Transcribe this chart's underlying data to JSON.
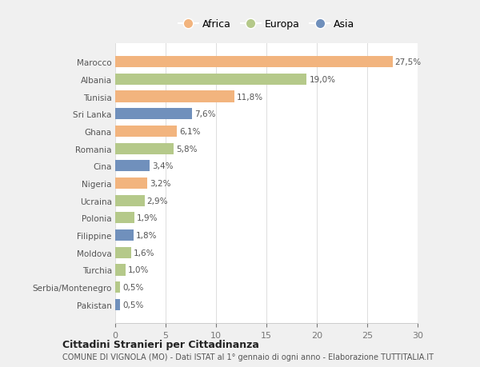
{
  "countries": [
    "Marocco",
    "Albania",
    "Tunisia",
    "Sri Lanka",
    "Ghana",
    "Romania",
    "Cina",
    "Nigeria",
    "Ucraina",
    "Polonia",
    "Filippine",
    "Moldova",
    "Turchia",
    "Serbia/Montenegro",
    "Pakistan"
  ],
  "values": [
    27.5,
    19.0,
    11.8,
    7.6,
    6.1,
    5.8,
    3.4,
    3.2,
    2.9,
    1.9,
    1.8,
    1.6,
    1.0,
    0.5,
    0.5
  ],
  "labels": [
    "27,5%",
    "19,0%",
    "11,8%",
    "7,6%",
    "6,1%",
    "5,8%",
    "3,4%",
    "3,2%",
    "2,9%",
    "1,9%",
    "1,8%",
    "1,6%",
    "1,0%",
    "0,5%",
    "0,5%"
  ],
  "continents": [
    "Africa",
    "Europa",
    "Africa",
    "Asia",
    "Africa",
    "Europa",
    "Asia",
    "Africa",
    "Europa",
    "Europa",
    "Asia",
    "Europa",
    "Europa",
    "Europa",
    "Asia"
  ],
  "colors": {
    "Africa": "#F2B47E",
    "Europa": "#B5C98A",
    "Asia": "#7090BC"
  },
  "xlim": [
    0,
    30
  ],
  "xticks": [
    0,
    5,
    10,
    15,
    20,
    25,
    30
  ],
  "title": "Cittadini Stranieri per Cittadinanza",
  "subtitle": "COMUNE DI VIGNOLA (MO) - Dati ISTAT al 1° gennaio di ogni anno - Elaborazione TUTTITALIA.IT",
  "background_color": "#f0f0f0",
  "plot_background": "#ffffff",
  "bar_height": 0.65,
  "label_fontsize": 7.5,
  "ytick_fontsize": 7.5,
  "xtick_fontsize": 8,
  "legend_fontsize": 9,
  "title_fontsize": 9,
  "subtitle_fontsize": 7
}
